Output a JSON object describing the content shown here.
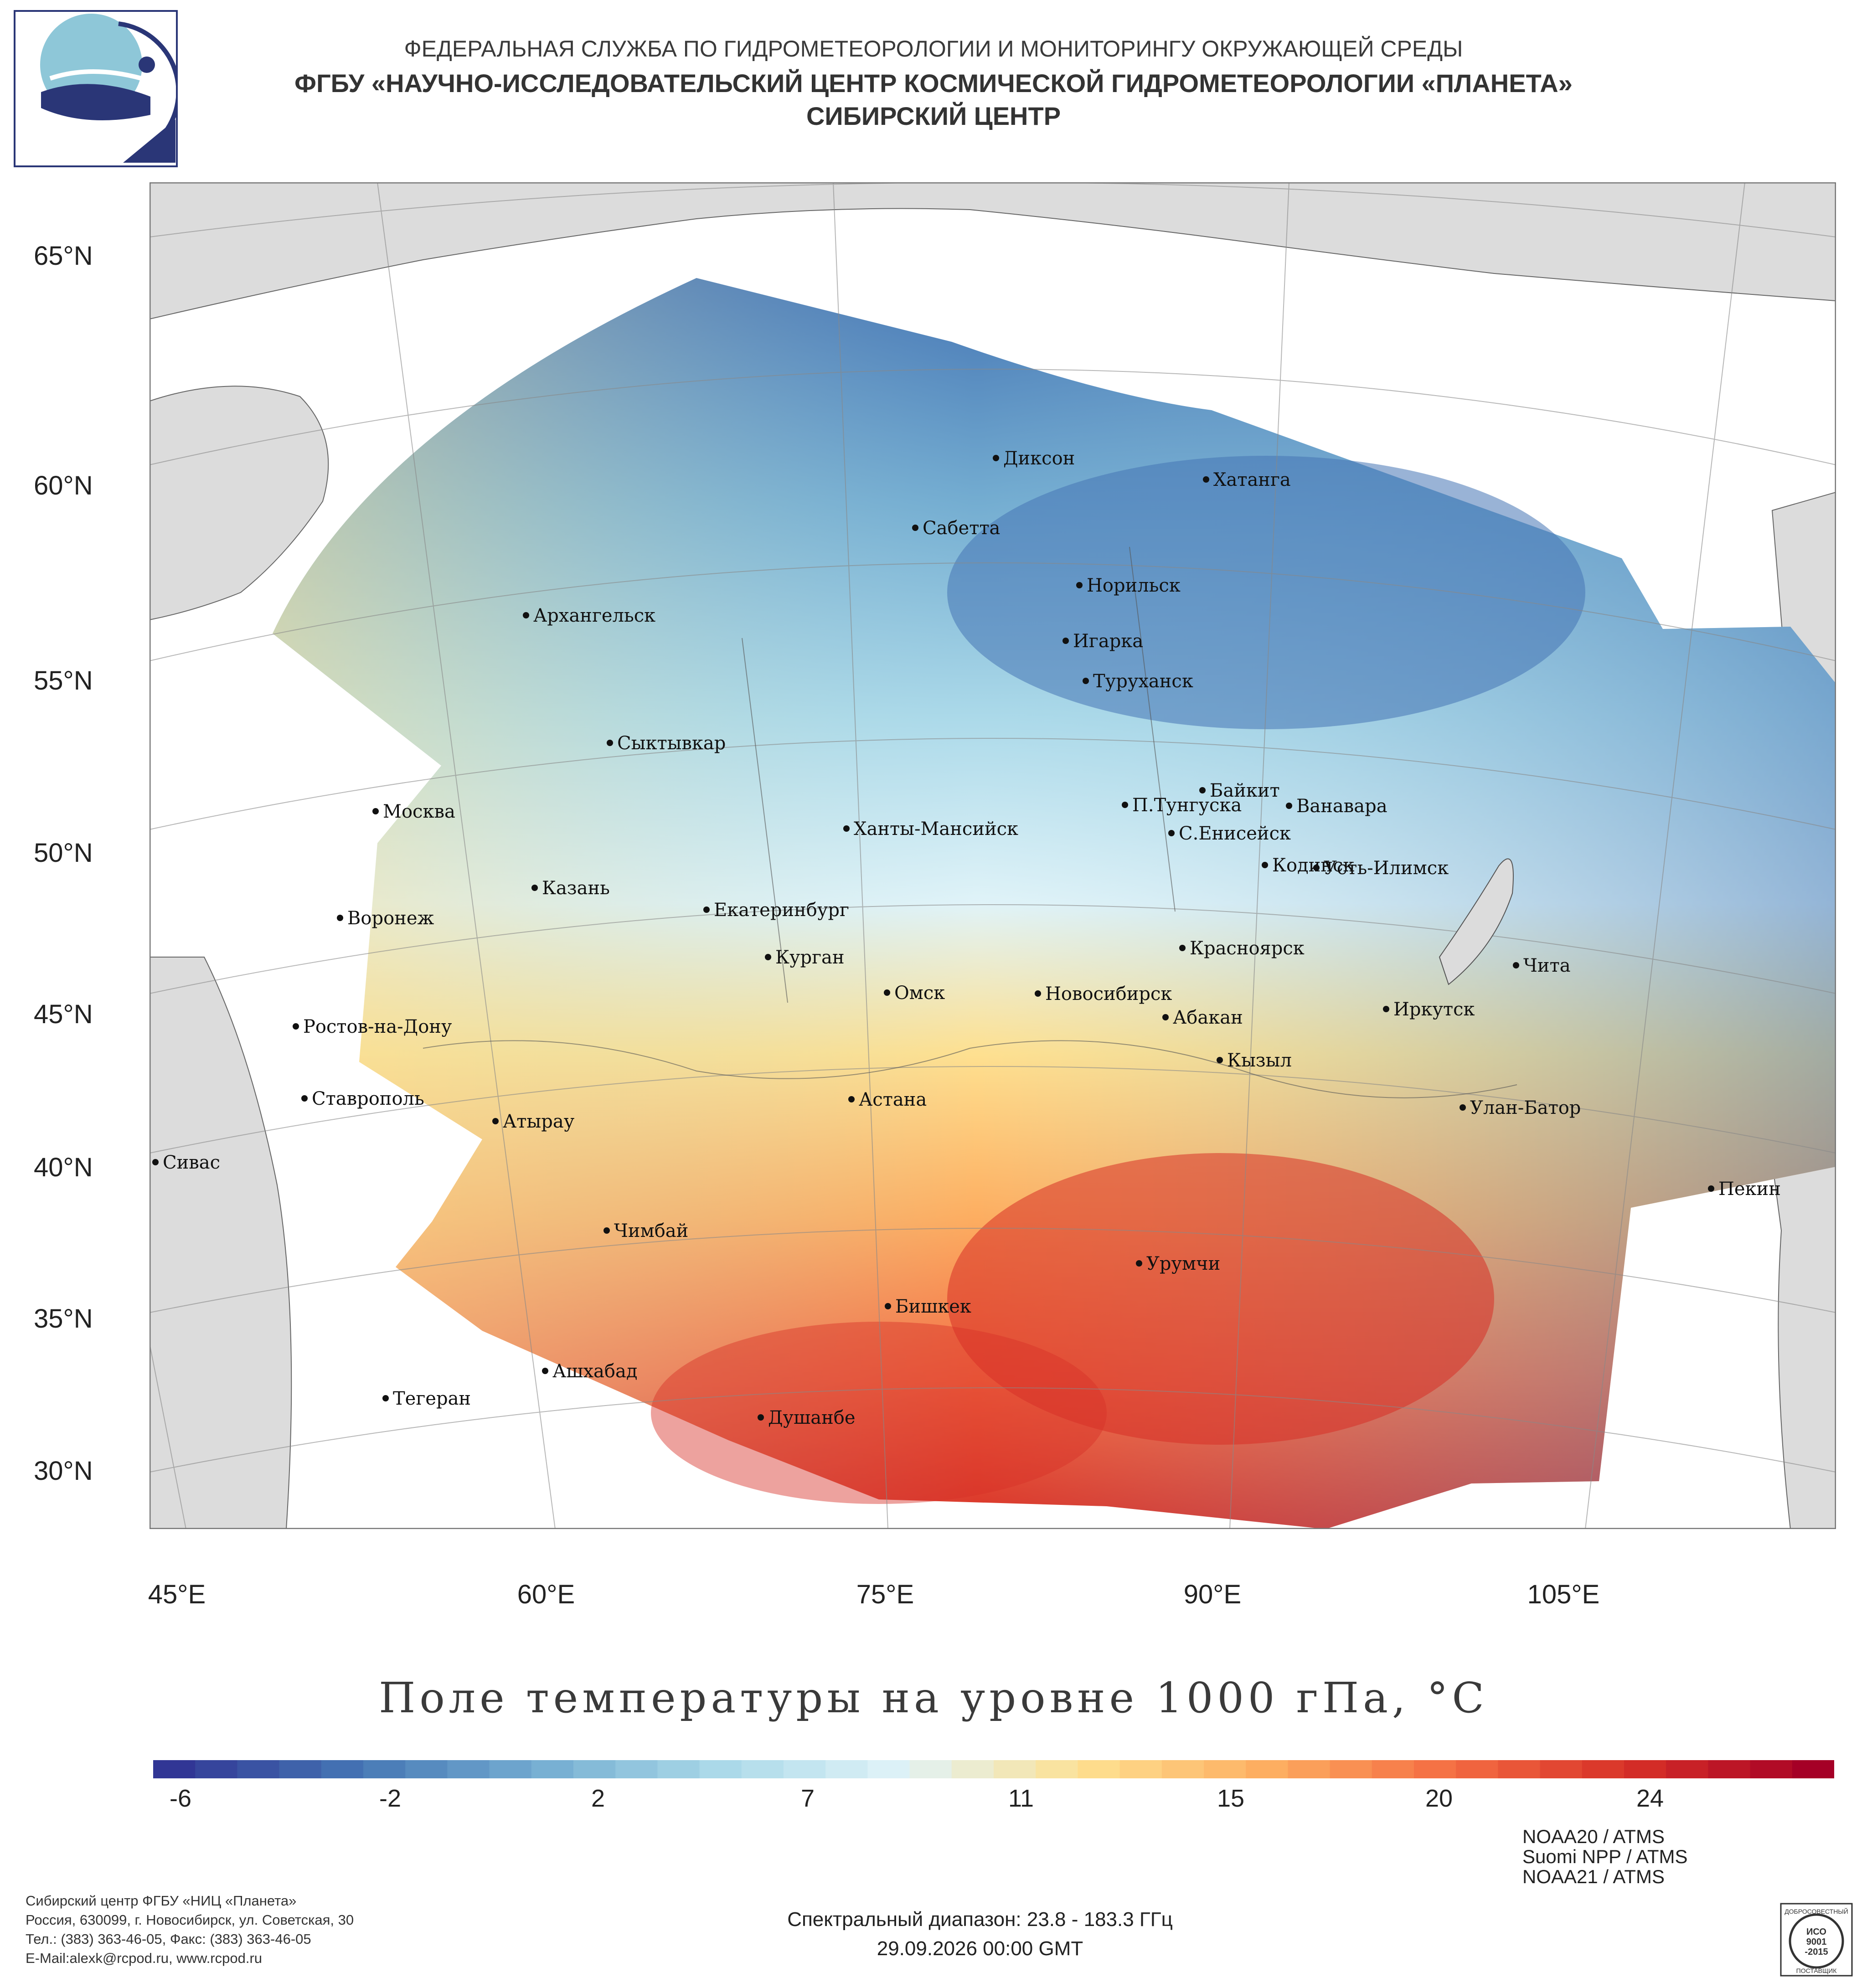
{
  "header": {
    "line1": "ФЕДЕРАЛЬНАЯ СЛУЖБА ПО ГИДРОМЕТЕОРОЛОГИИ И МОНИТОРИНГУ ОКРУЖАЮЩЕЙ СРЕДЫ",
    "line2": "ФГБУ «НАУЧНО-ИССЛЕДОВАТЕЛЬСКИЙ ЦЕНТР КОСМИЧЕСКОЙ ГИДРОМЕТЕОРОЛОГИИ «ПЛАНЕТА»",
    "line3": "СИБИРСКИЙ ЦЕНТР"
  },
  "map": {
    "lat_labels": [
      "65°N",
      "60°N",
      "55°N",
      "50°N",
      "45°N",
      "40°N",
      "35°N",
      "30°N"
    ],
    "lon_labels": [
      "45°E",
      "60°E",
      "75°E",
      "90°E",
      "105°E"
    ],
    "cities": [
      {
        "name": "Диксон"
      },
      {
        "name": "Хатанга"
      },
      {
        "name": "Сабетта"
      },
      {
        "name": "Норильск"
      },
      {
        "name": "Архангельск"
      },
      {
        "name": "Игарка"
      },
      {
        "name": "Туруханск"
      },
      {
        "name": "Сыктывкар"
      },
      {
        "name": "Байкит"
      },
      {
        "name": "П.Тунгуска"
      },
      {
        "name": "Ванавара"
      },
      {
        "name": "Москва"
      },
      {
        "name": "Ханты-Мансийск"
      },
      {
        "name": "С.Енисейск"
      },
      {
        "name": "Кодинск"
      },
      {
        "name": "Усть-Илимск"
      },
      {
        "name": "Казань"
      },
      {
        "name": "Екатеринбург"
      },
      {
        "name": "Воронеж"
      },
      {
        "name": "Красноярск"
      },
      {
        "name": "Курган"
      },
      {
        "name": "Чита"
      },
      {
        "name": "Омск"
      },
      {
        "name": "Новосибирск"
      },
      {
        "name": "Ростов-на-Дону"
      },
      {
        "name": "Иркутск"
      },
      {
        "name": "Абакан"
      },
      {
        "name": "Кызыл"
      },
      {
        "name": "Ставрополь"
      },
      {
        "name": "Астана"
      },
      {
        "name": "Улан-Батор"
      },
      {
        "name": "Атырау"
      },
      {
        "name": "Сивас"
      },
      {
        "name": "Пекин"
      },
      {
        "name": "Чимбай"
      },
      {
        "name": "Урумчи"
      },
      {
        "name": "Бишкек"
      },
      {
        "name": "Ашхабад"
      },
      {
        "name": "Тегеран"
      },
      {
        "name": "Душанбе"
      }
    ]
  },
  "colorbar": {
    "title": "Поле температуры на уровне 1000 гПа, °С",
    "tick_labels": [
      "-6",
      "-2",
      "2",
      "7",
      "11",
      "15",
      "20",
      "24"
    ],
    "palette": [
      "#313695",
      "#4575b4",
      "#74add1",
      "#abd9e9",
      "#e0f3f8",
      "#fee090",
      "#fdae61",
      "#f46d43",
      "#d73027",
      "#a50026"
    ]
  },
  "footer": {
    "org_lines": [
      "Сибирский центр ФГБУ «НИЦ «Планета»",
      "Россия, 630099, г. Новосибирск, ул. Советская, 30",
      "Тел.: (383) 363-46-05, Факс: (383) 363-46-05",
      "E-Mail:alexk@rcpod.ru, www.rcpod.ru"
    ],
    "spectral": "Спектральный диапазон: 23.8 - 183.3 ГГц",
    "datetime": "29.09.2026 00:00 GMT",
    "satellites": [
      "NOAA20 / ATMS",
      "Suomi NPP / ATMS",
      "NOAA21 / ATMS"
    ],
    "cert_lines": [
      "ДОБРОСОВЕСТНЫЙ",
      "ИСО",
      "9001",
      "-2015",
      "ПОСТАВЩИК"
    ]
  }
}
